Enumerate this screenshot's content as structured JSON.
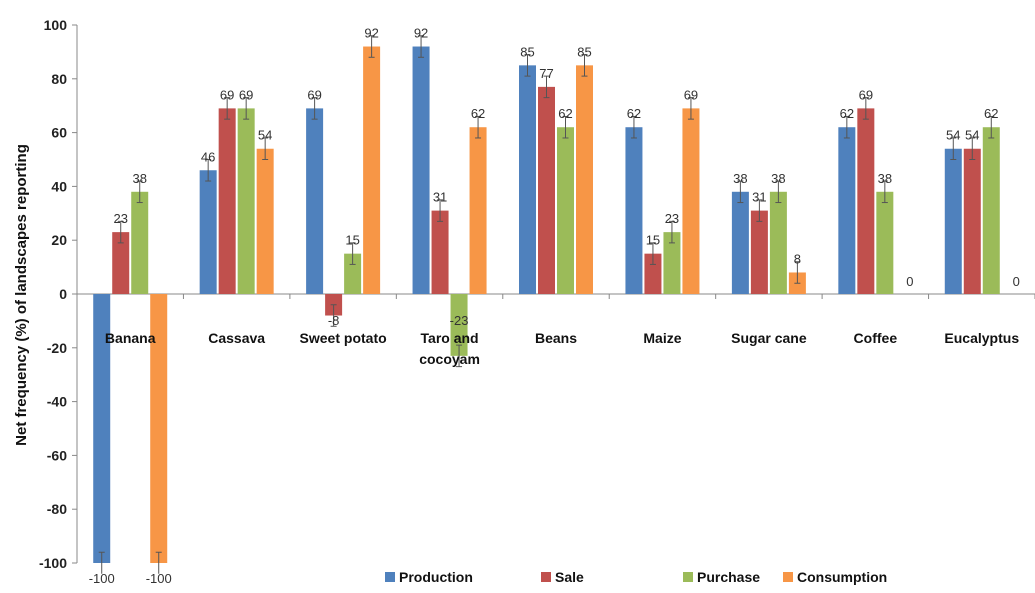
{
  "chart_data": {
    "type": "bar",
    "ylabel": "Net frequency (%) of landscapes reporting",
    "ylim": [
      -100,
      100
    ],
    "yticks": [
      100,
      80,
      60,
      40,
      20,
      0,
      -20,
      -40,
      -60,
      -80,
      -100
    ],
    "grid": false,
    "legend_position": "bottom",
    "categories": [
      "Banana",
      "Cassava",
      "Sweet potato",
      "Taro and cocoyam",
      "Beans",
      "Maize",
      "Sugar cane",
      "Coffee",
      "Eucalyptus"
    ],
    "series": [
      {
        "name": "Production",
        "color": "#4f81bd",
        "values": [
          -100,
          46,
          69,
          92,
          85,
          62,
          38,
          62,
          54
        ]
      },
      {
        "name": "Sale",
        "color": "#c0504d",
        "values": [
          23,
          69,
          -8,
          31,
          77,
          15,
          31,
          69,
          54
        ]
      },
      {
        "name": "Purchase",
        "color": "#9bbb59",
        "values": [
          38,
          69,
          15,
          -23,
          62,
          23,
          38,
          38,
          62
        ]
      },
      {
        "name": "Consumption",
        "color": "#f79646",
        "values": [
          -100,
          54,
          92,
          62,
          85,
          69,
          8,
          0,
          0
        ]
      }
    ]
  }
}
